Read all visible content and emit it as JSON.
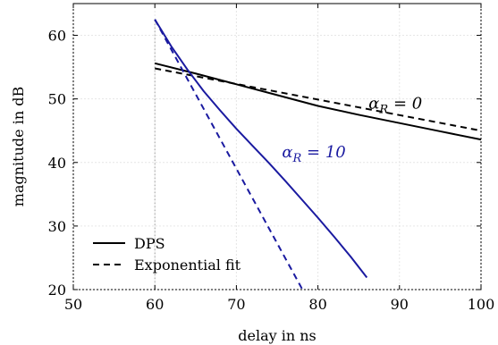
{
  "chart_data": {
    "type": "line",
    "xlabel": "delay in ns",
    "ylabel": "magnitude in dB",
    "xlim": [
      50,
      100
    ],
    "ylim": [
      20,
      65
    ],
    "xticks": [
      50,
      60,
      70,
      80,
      90,
      100
    ],
    "yticks": [
      20,
      30,
      40,
      50,
      60
    ],
    "grid": true,
    "legend": "bottom-left",
    "vline_x": 60,
    "series": [
      {
        "name": "DPS",
        "group": "alpha0",
        "style": "solid",
        "color": "#000000",
        "x": [
          60,
          65,
          70,
          75,
          80,
          85,
          90,
          95,
          100
        ],
        "y": [
          55.6,
          54.0,
          52.3,
          50.6,
          48.9,
          47.5,
          46.2,
          44.9,
          43.6
        ]
      },
      {
        "name": "Exponential fit",
        "group": "alpha0",
        "style": "dashed",
        "color": "#000000",
        "x": [
          60,
          100
        ],
        "y": [
          54.8,
          45.0
        ]
      },
      {
        "name": "DPS",
        "group": "alpha10",
        "style": "solid",
        "color": "#1a1aa0",
        "x": [
          60,
          62,
          64,
          66,
          68,
          70,
          72,
          74,
          76,
          78,
          80,
          82,
          84,
          86
        ],
        "y": [
          62.5,
          58.3,
          54.6,
          51.2,
          48.2,
          45.3,
          42.6,
          39.9,
          37.1,
          34.2,
          31.3,
          28.3,
          25.2,
          21.9
        ]
      },
      {
        "name": "Exponential fit",
        "group": "alpha10",
        "style": "dashed",
        "color": "#1a1aa0",
        "x": [
          60,
          78.1
        ],
        "y": [
          62.5,
          20.0
        ]
      }
    ],
    "annotations": [
      {
        "text": "α_R = 0",
        "x": 89.5,
        "y": 48.5,
        "color": "#000000"
      },
      {
        "text": "α_R = 10",
        "x": 79.5,
        "y": 40.8,
        "color": "#1a1aa0"
      }
    ],
    "legend_entries": [
      {
        "label": "DPS",
        "style": "solid"
      },
      {
        "label": "Exponential fit",
        "style": "dashed"
      }
    ]
  }
}
